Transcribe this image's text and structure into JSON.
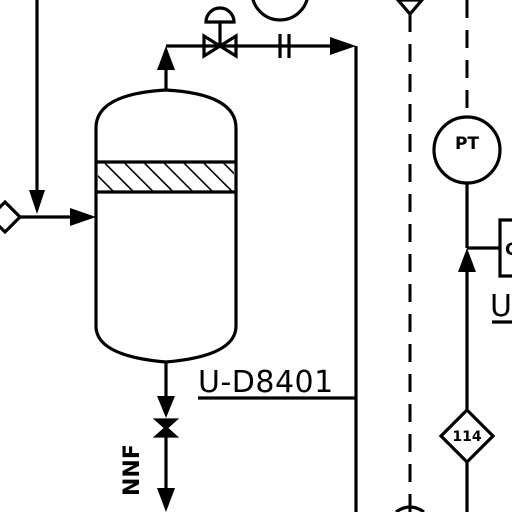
{
  "diagram": {
    "vessel_tag": "U-D8401",
    "instrument_bubble": "PT",
    "line_diamond": "114",
    "drain_destination": "NNF",
    "right_tag_partial": "U",
    "right_box_partial": "C"
  }
}
